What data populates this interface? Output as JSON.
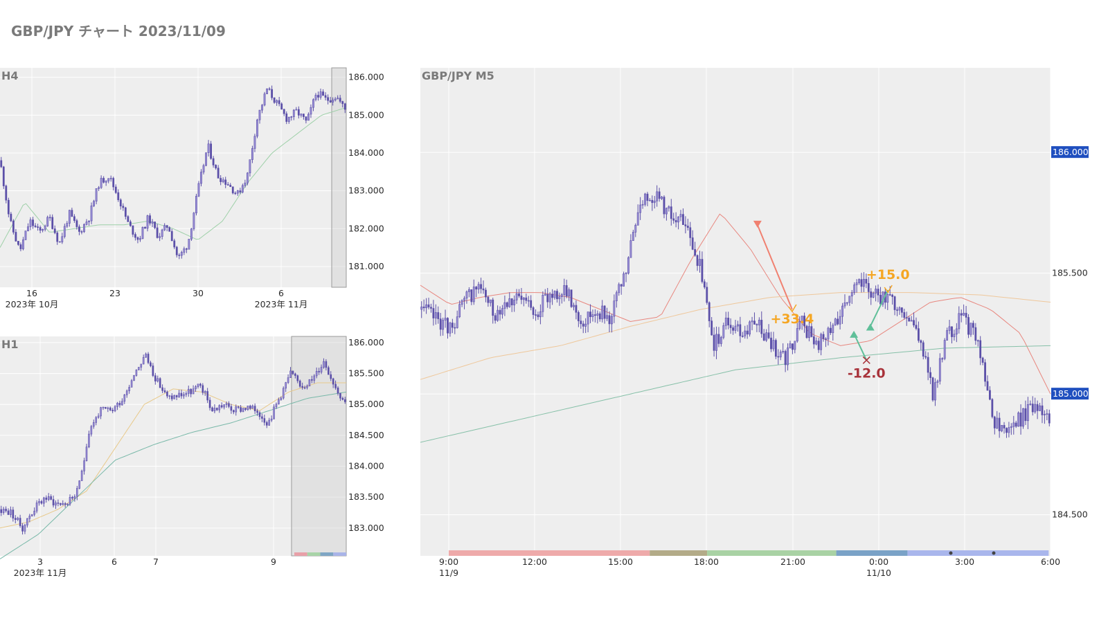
{
  "page": {
    "title": "GBP/JPY チャート 2023/11/09"
  },
  "chart_data": [
    {
      "id": "h4",
      "type": "candlestick",
      "title": "H4",
      "ylim": [
        180.45,
        186.25
      ],
      "yticks": [
        181.0,
        182.0,
        183.0,
        184.0,
        185.0,
        186.0
      ],
      "ytick_labels": [
        "181.000",
        "182.000",
        "183.000",
        "184.000",
        "185.000",
        "186.000"
      ],
      "xticks": [
        {
          "label": "16",
          "sub": "2023年 10月"
        },
        {
          "label": "23",
          "sub": ""
        },
        {
          "label": "30",
          "sub": ""
        },
        {
          "label": "6",
          "sub": "2023年 11月"
        }
      ],
      "path": [
        183.8,
        182.2,
        181.4,
        182.2,
        181.9,
        182.3,
        181.6,
        182.4,
        181.9,
        182.3,
        183.2,
        183.4,
        182.8,
        182.1,
        181.7,
        182.3,
        181.8,
        182.1,
        181.2,
        181.6,
        183.0,
        184.2,
        183.4,
        183.2,
        182.9,
        183.4,
        184.9,
        185.7,
        185.3,
        184.9,
        185.1,
        184.8,
        185.6,
        185.4,
        185.5,
        185.1
      ],
      "ma": [
        {
          "color": "#9ed0a8",
          "values": [
            181.5,
            182.7,
            181.9,
            182.0,
            182.1,
            182.1,
            182.2,
            182.0,
            181.7,
            182.2,
            183.2,
            184.0,
            184.5,
            185.0,
            185.2
          ]
        }
      ],
      "highlight_from": 0.958
    },
    {
      "id": "h1",
      "type": "candlestick",
      "title": "H1",
      "ylim": [
        182.55,
        186.1
      ],
      "yticks": [
        183.0,
        183.5,
        184.0,
        184.5,
        185.0,
        185.5,
        186.0
      ],
      "ytick_labels": [
        "183.000",
        "183.500",
        "184.000",
        "184.500",
        "185.000",
        "185.500",
        "186.000"
      ],
      "xticks": [
        {
          "label": "3",
          "sub": "2023年 11月"
        },
        {
          "label": "6",
          "sub": ""
        },
        {
          "label": "7",
          "sub": ""
        },
        {
          "label": "9",
          "sub": ""
        }
      ],
      "path": [
        183.3,
        183.25,
        183.0,
        183.3,
        183.5,
        183.4,
        183.4,
        183.6,
        184.6,
        184.9,
        184.9,
        185.1,
        185.5,
        185.8,
        185.4,
        185.1,
        185.15,
        185.2,
        185.3,
        184.9,
        185.0,
        184.9,
        184.95,
        184.9,
        184.7,
        185.1,
        185.5,
        185.3,
        185.4,
        185.7,
        185.3,
        185.0
      ],
      "ma": [
        {
          "color": "#e8c98a",
          "values": [
            183.0,
            183.1,
            183.3,
            183.6,
            184.3,
            185.0,
            185.25,
            185.2,
            185.0,
            184.9,
            185.2,
            185.35,
            185.35
          ]
        },
        {
          "color": "#78b8a8",
          "values": [
            182.5,
            182.9,
            183.5,
            184.1,
            184.35,
            184.55,
            184.7,
            184.9,
            185.1,
            185.2
          ]
        }
      ],
      "highlight_from": 0.842,
      "session_colors": [
        "#e8a0a8",
        "#a8d4a8",
        "#7fa6c4",
        "#a9b4e8"
      ]
    },
    {
      "id": "m5",
      "type": "candlestick",
      "title": "GBP/JPY M5",
      "ylim": [
        184.33,
        186.35
      ],
      "yticks": [
        184.5,
        185.5
      ],
      "ytick_labels": [
        "184.500",
        "185.500"
      ],
      "badges": [
        {
          "value": 186.0,
          "label": "186.000",
          "color": "#1f4fbf"
        },
        {
          "value": 185.0,
          "label": "185.000",
          "color": "#1f4fbf"
        }
      ],
      "xticks": [
        {
          "label": "9:00",
          "sub": "11/9"
        },
        {
          "label": "12:00",
          "sub": ""
        },
        {
          "label": "15:00",
          "sub": ""
        },
        {
          "label": "18:00",
          "sub": ""
        },
        {
          "label": "21:00",
          "sub": ""
        },
        {
          "label": "0:00",
          "sub": "11/10"
        },
        {
          "label": "3:00",
          "sub": ""
        },
        {
          "label": "6:00",
          "sub": ""
        }
      ],
      "path": [
        185.35,
        185.32,
        185.27,
        185.38,
        185.45,
        185.33,
        185.4,
        185.38,
        185.35,
        185.42,
        185.42,
        185.3,
        185.35,
        185.32,
        185.5,
        185.8,
        185.83,
        185.75,
        185.7,
        185.55,
        185.2,
        185.3,
        185.25,
        185.3,
        185.2,
        185.15,
        185.3,
        185.2,
        185.25,
        185.4,
        185.45,
        185.42,
        185.38,
        185.35,
        185.25,
        185.0,
        185.25,
        185.32,
        185.22,
        184.9,
        184.85,
        184.9,
        184.95,
        184.9
      ],
      "ma": [
        {
          "color": "#e8877f",
          "values": [
            185.45,
            185.37,
            185.4,
            185.42,
            185.42,
            185.4,
            185.35,
            185.3,
            185.32,
            185.55,
            185.75,
            185.6,
            185.4,
            185.25,
            185.2,
            185.22,
            185.3,
            185.38,
            185.4,
            185.35,
            185.25,
            185.0
          ]
        },
        {
          "color": "#efc79a",
          "values": [
            185.06,
            185.15,
            185.2,
            185.28,
            185.35,
            185.4,
            185.42,
            185.42,
            185.41,
            185.38
          ]
        },
        {
          "color": "#86c0a8",
          "values": [
            184.8,
            184.9,
            185.0,
            185.1,
            185.15,
            185.19,
            185.2
          ]
        }
      ],
      "trades": [
        {
          "dir": "short",
          "entry_x": 0.535,
          "entry_y": 185.7,
          "exit_x": 0.59,
          "exit_y": 185.35,
          "result": "+33.4",
          "result_color": "#f5a623"
        },
        {
          "dir": "long",
          "entry_x": 0.688,
          "entry_y": 185.25,
          "exit_x": 0.708,
          "exit_y": 185.14,
          "result": "-12.0",
          "result_color": "#a8323a"
        },
        {
          "dir": "long",
          "entry_x": 0.714,
          "entry_y": 185.28,
          "exit_x": 0.742,
          "exit_y": 185.43,
          "result": "+15.0",
          "result_color": "#f5a623"
        }
      ],
      "sessions": [
        {
          "from": 0.045,
          "to": 0.364,
          "color": "#eeaaaa"
        },
        {
          "from": 0.364,
          "to": 0.455,
          "color": "#b3ab88"
        },
        {
          "from": 0.455,
          "to": 0.66,
          "color": "#a9d2a4"
        },
        {
          "from": 0.66,
          "to": 0.773,
          "color": "#7aa2c7"
        },
        {
          "from": 0.773,
          "to": 0.997,
          "color": "#a9b6ec"
        }
      ]
    }
  ]
}
